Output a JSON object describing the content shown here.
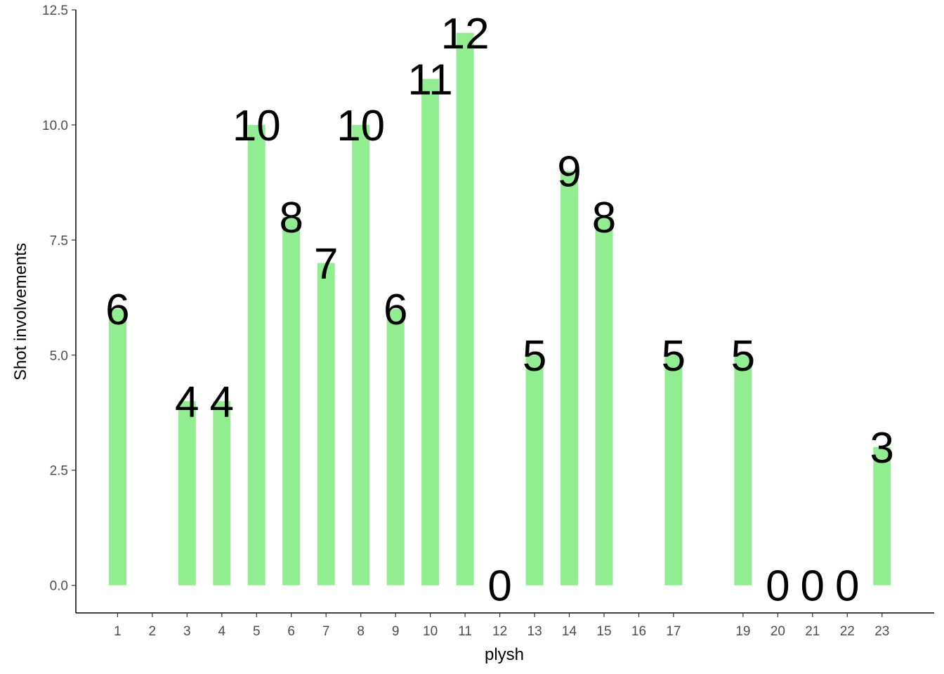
{
  "chart_data": {
    "type": "bar",
    "title": "",
    "xlabel": "plysh",
    "ylabel": "Shot involvements",
    "x": [
      1,
      3,
      4,
      5,
      6,
      7,
      8,
      9,
      10,
      11,
      12,
      13,
      14,
      15,
      17,
      19,
      20,
      21,
      22,
      23
    ],
    "values": [
      6,
      4,
      4,
      10,
      8,
      7,
      10,
      6,
      11,
      12,
      0,
      5,
      9,
      8,
      5,
      5,
      0,
      0,
      0,
      3
    ],
    "x_ticks": [
      1,
      2,
      3,
      4,
      5,
      6,
      7,
      8,
      9,
      10,
      11,
      12,
      13,
      14,
      15,
      16,
      17,
      19,
      20,
      21,
      22,
      23
    ],
    "y_ticks": [
      "0.0",
      "2.5",
      "5.0",
      "7.5",
      "10.0",
      "12.5"
    ],
    "ylim": [
      -0.6,
      12.5
    ],
    "xlim": [
      -0.2,
      24.5
    ],
    "bar_color": "#90ee90",
    "grid": false,
    "legend": "none"
  }
}
